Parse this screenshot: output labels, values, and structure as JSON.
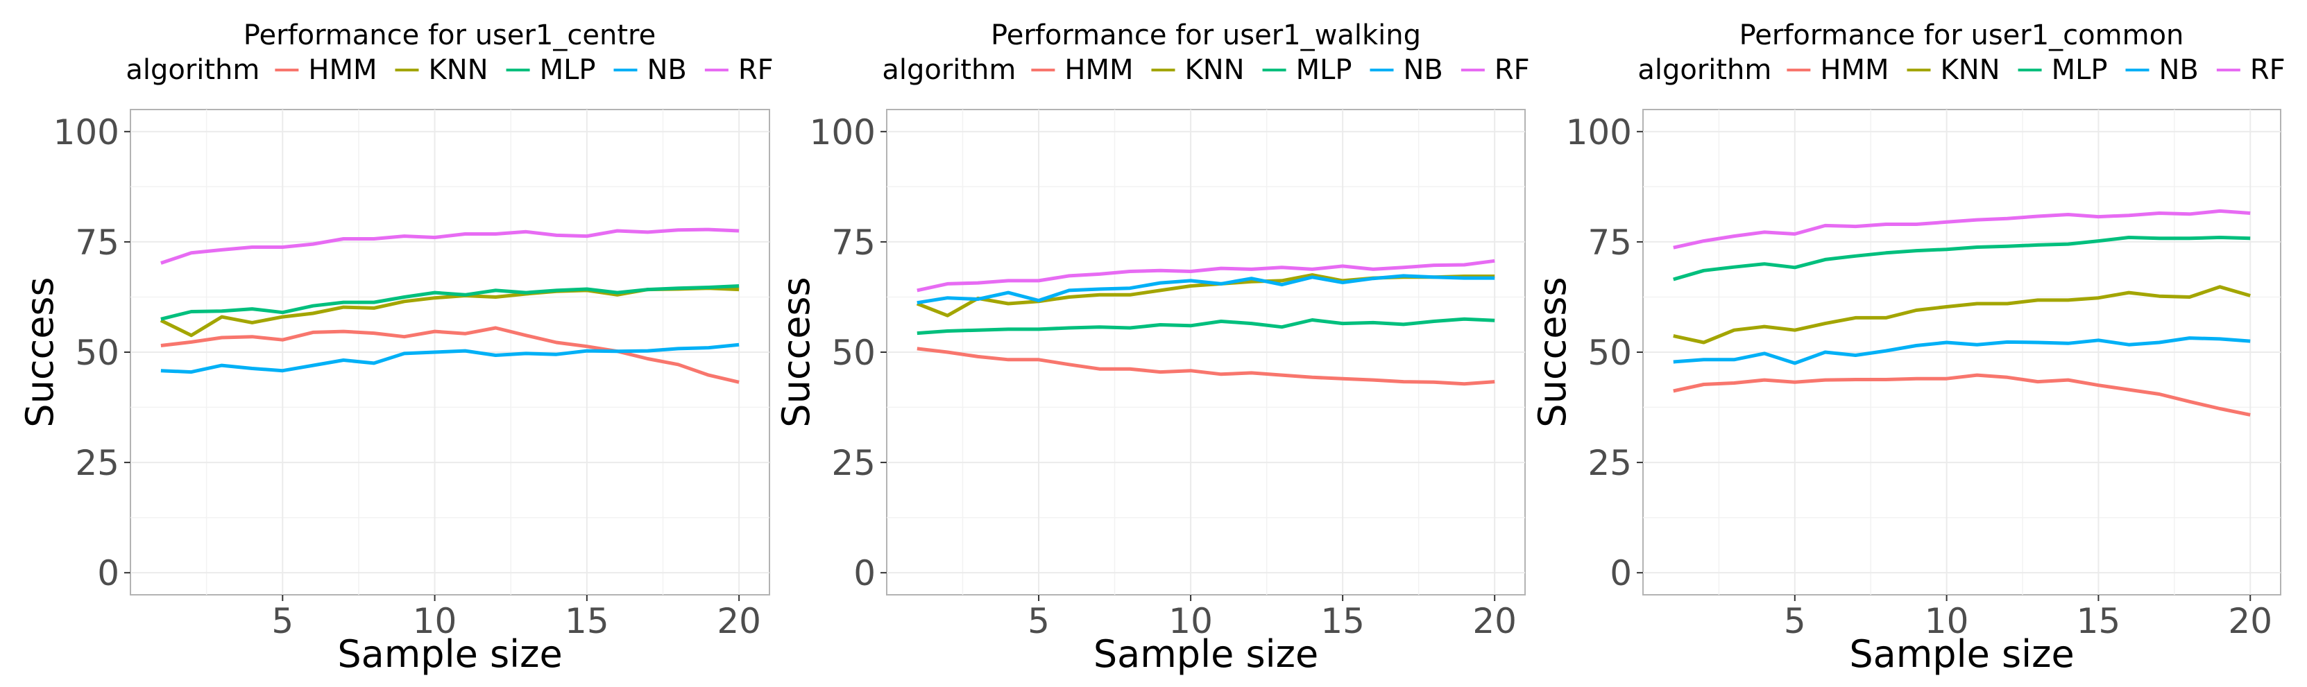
{
  "chart_data": [
    {
      "type": "line",
      "title": "Performance for user1_centre",
      "xlabel": "Sample size",
      "ylabel": "Success",
      "legend_title": "algorithm",
      "xlim": [
        0,
        21
      ],
      "ylim": [
        -5,
        105
      ],
      "xticks": [
        5,
        10,
        15,
        20
      ],
      "yticks": [
        0,
        25,
        50,
        75,
        100
      ],
      "x": [
        1,
        2,
        3,
        4,
        5,
        6,
        7,
        8,
        9,
        10,
        11,
        12,
        13,
        14,
        15,
        16,
        17,
        18,
        19,
        20
      ],
      "series": [
        {
          "name": "HMM",
          "color": "#F8766D",
          "values": [
            51.5,
            52.3,
            53.3,
            53.5,
            52.8,
            54.5,
            54.7,
            54.3,
            53.5,
            54.7,
            54.2,
            55.5,
            53.8,
            52.2,
            51.3,
            50.2,
            48.5,
            47.2,
            44.8,
            43.2
          ]
        },
        {
          "name": "KNN",
          "color": "#A3A500",
          "values": [
            57.2,
            53.8,
            58.0,
            56.7,
            58.0,
            58.8,
            60.2,
            60.0,
            61.5,
            62.3,
            62.8,
            62.5,
            63.2,
            63.8,
            64.0,
            63.0,
            64.2,
            64.3,
            64.5,
            64.2
          ]
        },
        {
          "name": "MLP",
          "color": "#00BF7D",
          "values": [
            57.5,
            59.2,
            59.3,
            59.8,
            59.0,
            60.5,
            61.3,
            61.3,
            62.5,
            63.5,
            63.0,
            64.0,
            63.5,
            64.0,
            64.3,
            63.5,
            64.2,
            64.5,
            64.7,
            65.0
          ]
        },
        {
          "name": "NB",
          "color": "#00B0F6",
          "values": [
            45.8,
            45.5,
            47.0,
            46.3,
            45.8,
            47.0,
            48.2,
            47.5,
            49.7,
            50.0,
            50.3,
            49.3,
            49.7,
            49.5,
            50.3,
            50.2,
            50.3,
            50.8,
            51.0,
            51.7
          ]
        },
        {
          "name": "RF",
          "color": "#E76BF3",
          "values": [
            70.2,
            72.5,
            73.2,
            73.8,
            73.8,
            74.5,
            75.7,
            75.7,
            76.3,
            76.0,
            76.8,
            76.8,
            77.3,
            76.5,
            76.3,
            77.5,
            77.2,
            77.7,
            77.8,
            77.5
          ]
        }
      ]
    },
    {
      "type": "line",
      "title": "Performance for user1_walking",
      "xlabel": "Sample size",
      "ylabel": "Success",
      "legend_title": "algorithm",
      "xlim": [
        0,
        21
      ],
      "ylim": [
        -5,
        105
      ],
      "xticks": [
        5,
        10,
        15,
        20
      ],
      "yticks": [
        0,
        25,
        50,
        75,
        100
      ],
      "x": [
        1,
        2,
        3,
        4,
        5,
        6,
        7,
        8,
        9,
        10,
        11,
        12,
        13,
        14,
        15,
        16,
        17,
        18,
        19,
        20
      ],
      "series": [
        {
          "name": "HMM",
          "color": "#F8766D",
          "values": [
            50.8,
            50.0,
            49.0,
            48.3,
            48.3,
            47.2,
            46.2,
            46.2,
            45.5,
            45.8,
            45.0,
            45.3,
            44.8,
            44.3,
            44.0,
            43.7,
            43.3,
            43.2,
            42.8,
            43.3
          ]
        },
        {
          "name": "KNN",
          "color": "#A3A500",
          "values": [
            61.0,
            58.3,
            62.2,
            61.0,
            61.5,
            62.5,
            63.0,
            63.0,
            64.0,
            65.0,
            65.5,
            66.0,
            66.2,
            67.5,
            66.2,
            66.8,
            67.0,
            67.0,
            67.2,
            67.2
          ]
        },
        {
          "name": "MLP",
          "color": "#00BF7D",
          "values": [
            54.3,
            54.8,
            55.0,
            55.2,
            55.2,
            55.5,
            55.7,
            55.5,
            56.2,
            56.0,
            57.0,
            56.5,
            55.7,
            57.3,
            56.5,
            56.7,
            56.3,
            57.0,
            57.5,
            57.2
          ]
        },
        {
          "name": "NB",
          "color": "#00B0F6",
          "values": [
            61.2,
            62.3,
            62.0,
            63.5,
            61.7,
            64.0,
            64.3,
            64.5,
            65.7,
            66.2,
            65.5,
            66.7,
            65.3,
            67.0,
            65.8,
            66.7,
            67.3,
            67.0,
            66.8,
            66.8
          ]
        },
        {
          "name": "RF",
          "color": "#E76BF3",
          "values": [
            64.0,
            65.5,
            65.7,
            66.2,
            66.2,
            67.3,
            67.7,
            68.3,
            68.5,
            68.3,
            69.0,
            68.8,
            69.2,
            68.8,
            69.5,
            68.8,
            69.2,
            69.7,
            69.8,
            70.7
          ]
        }
      ]
    },
    {
      "type": "line",
      "title": "Performance for user1_common",
      "xlabel": "Sample size",
      "ylabel": "Success",
      "legend_title": "algorithm",
      "xlim": [
        0,
        21
      ],
      "ylim": [
        -5,
        105
      ],
      "xticks": [
        5,
        10,
        15,
        20
      ],
      "yticks": [
        0,
        25,
        50,
        75,
        100
      ],
      "x": [
        1,
        2,
        3,
        4,
        5,
        6,
        7,
        8,
        9,
        10,
        11,
        12,
        13,
        14,
        15,
        16,
        17,
        18,
        19,
        20
      ],
      "series": [
        {
          "name": "HMM",
          "color": "#F8766D",
          "values": [
            41.2,
            42.7,
            43.0,
            43.7,
            43.2,
            43.7,
            43.8,
            43.8,
            44.0,
            44.0,
            44.8,
            44.3,
            43.3,
            43.7,
            42.5,
            41.5,
            40.5,
            38.8,
            37.2,
            35.8
          ]
        },
        {
          "name": "KNN",
          "color": "#A3A500",
          "values": [
            53.7,
            52.2,
            55.0,
            55.8,
            55.0,
            56.5,
            57.8,
            57.8,
            59.5,
            60.3,
            61.0,
            61.0,
            61.8,
            61.8,
            62.3,
            63.5,
            62.7,
            62.5,
            64.8,
            62.8
          ]
        },
        {
          "name": "MLP",
          "color": "#00BF7D",
          "values": [
            66.5,
            68.5,
            69.3,
            70.0,
            69.2,
            71.0,
            71.8,
            72.5,
            73.0,
            73.3,
            73.8,
            74.0,
            74.3,
            74.5,
            75.2,
            76.0,
            75.8,
            75.8,
            76.0,
            75.8
          ]
        },
        {
          "name": "NB",
          "color": "#00B0F6",
          "values": [
            47.8,
            48.3,
            48.3,
            49.7,
            47.5,
            50.0,
            49.3,
            50.3,
            51.5,
            52.2,
            51.7,
            52.3,
            52.2,
            52.0,
            52.7,
            51.7,
            52.2,
            53.2,
            53.0,
            52.5
          ]
        },
        {
          "name": "RF",
          "color": "#E76BF3",
          "values": [
            73.7,
            75.2,
            76.3,
            77.2,
            76.8,
            78.7,
            78.5,
            79.0,
            79.0,
            79.5,
            80.0,
            80.3,
            80.8,
            81.2,
            80.7,
            81.0,
            81.5,
            81.3,
            82.0,
            81.5
          ]
        }
      ]
    }
  ]
}
